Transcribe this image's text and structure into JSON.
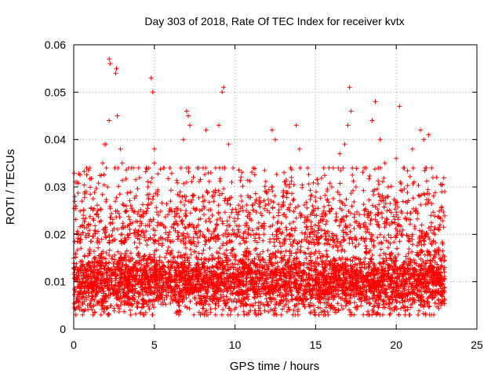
{
  "chart_data": {
    "type": "scatter",
    "title": "Day 303 of 2018, Rate Of TEC Index for receiver kvtx",
    "xlabel": "GPS time / hours",
    "ylabel": "ROTI / TECUs",
    "xlim": [
      0,
      25
    ],
    "ylim": [
      0,
      0.06
    ],
    "xticks": [
      0,
      5,
      10,
      15,
      20,
      25
    ],
    "xtick_labels": [
      "0",
      "5",
      "10",
      "15",
      "20",
      "25"
    ],
    "yticks": [
      0,
      0.01,
      0.02,
      0.03,
      0.04,
      0.05,
      0.06
    ],
    "ytick_labels": [
      "0",
      "0.01",
      "0.02",
      "0.03",
      "0.04",
      "0.05",
      "0.06"
    ],
    "grid": true,
    "marker": "plus",
    "color": "#ff0000",
    "series": [
      {
        "name": "ROTI",
        "coverage_hours": [
          0,
          23
        ],
        "typical_range": [
          0.005,
          0.02
        ],
        "points": [
          [
            0.0,
            0.015
          ],
          [
            0.1,
            0.031
          ],
          [
            0.2,
            0.031
          ],
          [
            0.3,
            0.02
          ],
          [
            0.5,
            0.027
          ],
          [
            1.0,
            0.016
          ],
          [
            1.2,
            0.012
          ],
          [
            1.5,
            0.025
          ],
          [
            1.8,
            0.035
          ],
          [
            1.9,
            0.039
          ],
          [
            2.0,
            0.039
          ],
          [
            2.1,
            0.03
          ],
          [
            2.2,
            0.044
          ],
          [
            2.2,
            0.057
          ],
          [
            2.25,
            0.056
          ],
          [
            2.6,
            0.054
          ],
          [
            2.65,
            0.055
          ],
          [
            2.7,
            0.045
          ],
          [
            2.9,
            0.038
          ],
          [
            3.0,
            0.035
          ],
          [
            3.3,
            0.025
          ],
          [
            3.5,
            0.004
          ],
          [
            4.0,
            0.02
          ],
          [
            4.5,
            0.034
          ],
          [
            4.6,
            0.03
          ],
          [
            4.8,
            0.053
          ],
          [
            4.9,
            0.05
          ],
          [
            5.0,
            0.038
          ],
          [
            5.0,
            0.035
          ],
          [
            5.2,
            0.029
          ],
          [
            6.0,
            0.027
          ],
          [
            6.5,
            0.005
          ],
          [
            6.8,
            0.04
          ],
          [
            7.0,
            0.046
          ],
          [
            7.1,
            0.045
          ],
          [
            7.2,
            0.043
          ],
          [
            7.0,
            0.031
          ],
          [
            8.0,
            0.028
          ],
          [
            8.2,
            0.042
          ],
          [
            8.5,
            0.033
          ],
          [
            9.0,
            0.043
          ],
          [
            9.2,
            0.05
          ],
          [
            9.3,
            0.051
          ],
          [
            9.6,
            0.039
          ],
          [
            9.8,
            0.031
          ],
          [
            10.0,
            0.02
          ],
          [
            10.5,
            0.025
          ],
          [
            11.0,
            0.023
          ],
          [
            11.5,
            0.027
          ],
          [
            12.0,
            0.025
          ],
          [
            12.3,
            0.042
          ],
          [
            12.5,
            0.04
          ],
          [
            13.0,
            0.026
          ],
          [
            13.5,
            0.032
          ],
          [
            13.8,
            0.043
          ],
          [
            14.0,
            0.038
          ],
          [
            14.5,
            0.034
          ],
          [
            15.0,
            0.027
          ],
          [
            15.5,
            0.034
          ],
          [
            16.0,
            0.03
          ],
          [
            16.5,
            0.037
          ],
          [
            16.8,
            0.039
          ],
          [
            17.0,
            0.043
          ],
          [
            17.1,
            0.051
          ],
          [
            17.2,
            0.046
          ],
          [
            17.5,
            0.03
          ],
          [
            18.0,
            0.034
          ],
          [
            18.5,
            0.044
          ],
          [
            18.7,
            0.048
          ],
          [
            19.0,
            0.04
          ],
          [
            19.3,
            0.035
          ],
          [
            19.5,
            0.03
          ],
          [
            20.0,
            0.036
          ],
          [
            20.2,
            0.047
          ],
          [
            20.5,
            0.034
          ],
          [
            21.0,
            0.038
          ],
          [
            21.5,
            0.042
          ],
          [
            21.7,
            0.04
          ],
          [
            22.0,
            0.041
          ],
          [
            22.5,
            0.032
          ],
          [
            23.0,
            0.029
          ],
          [
            8.1,
            0.003
          ],
          [
            18.3,
            0.003
          ],
          [
            14.9,
            0.004
          ],
          [
            3.4,
            0.005
          ]
        ]
      }
    ]
  }
}
